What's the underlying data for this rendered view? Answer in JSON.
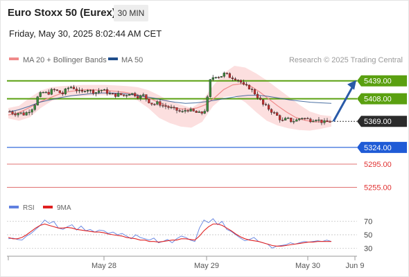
{
  "header": {
    "title": "Euro Stoxx 50 (Eurex)",
    "timeframe": "30 MIN",
    "datetime": "Friday, May 30, 2025 8:02:44 AM CET"
  },
  "legend": {
    "ma20": "MA 20 + Bollinger Bands",
    "ma50": "MA 50",
    "copyright": "Research © 2025 Trading Central",
    "rsi": "RSI",
    "ma9": "9MA"
  },
  "colors": {
    "ma20": "#f08a8a",
    "ma50": "#1f4e8c",
    "bollinger": "#fcd9d9",
    "resistance": "#5aa010",
    "support": "#1f5bd6",
    "support_minor": "#e07070",
    "arrow": "#2a5aa8",
    "rsi": "#6080e0",
    "rsi_ma": "#e02020"
  },
  "chart_data": [
    {
      "type": "candlestick",
      "ylim": [
        5240,
        5465
      ],
      "xlabels": [
        "May 28",
        "May 29",
        "May 30",
        "Jun 9"
      ],
      "levels": [
        {
          "value": 5439.0,
          "label": "5439.00",
          "kind": "resistance"
        },
        {
          "value": 5408.0,
          "label": "5408.00",
          "kind": "resistance"
        },
        {
          "value": 5369.0,
          "label": "5369.00",
          "kind": "last"
        },
        {
          "value": 5324.0,
          "label": "5324.00",
          "kind": "support"
        },
        {
          "value": 5295.0,
          "label": "5295.00",
          "kind": "support_minor"
        },
        {
          "value": 5255.0,
          "label": "5255.00",
          "kind": "support_minor"
        }
      ],
      "price_path": [
        5386,
        5382,
        5384,
        5381,
        5387,
        5394,
        5414,
        5419,
        5417,
        5424,
        5421,
        5416,
        5426,
        5429,
        5423,
        5418,
        5426,
        5421,
        5419,
        5424,
        5421,
        5416,
        5414,
        5416,
        5413,
        5418,
        5416,
        5411,
        5414,
        5404,
        5398,
        5401,
        5396,
        5394,
        5391,
        5388,
        5384,
        5390,
        5387,
        5384,
        5382,
        5390,
        5442,
        5448,
        5446,
        5452,
        5446,
        5444,
        5440,
        5430,
        5428,
        5420,
        5410,
        5398,
        5392,
        5385,
        5378,
        5369,
        5374,
        5369,
        5371,
        5376,
        5373,
        5371,
        5374,
        5369,
        5367,
        5369
      ],
      "ma20_path": [
        5380,
        5383,
        5390,
        5398,
        5406,
        5412,
        5418,
        5421,
        5423,
        5424,
        5423,
        5422,
        5421,
        5419,
        5416,
        5412,
        5407,
        5400,
        5394,
        5391,
        5390,
        5392,
        5398,
        5410,
        5424,
        5432,
        5434,
        5430,
        5420,
        5408,
        5396,
        5385,
        5376,
        5371,
        5368,
        5368,
        5369
      ],
      "ma50_path": [
        5385,
        5389,
        5395,
        5402,
        5406,
        5410,
        5413,
        5415,
        5417,
        5418,
        5418,
        5417,
        5415,
        5412,
        5409,
        5405,
        5402,
        5400,
        5401,
        5403,
        5406,
        5409,
        5412,
        5414,
        5414,
        5412,
        5409,
        5406,
        5404,
        5402,
        5401,
        5400
      ],
      "bb_upper": [
        5392,
        5396,
        5410,
        5422,
        5428,
        5430,
        5431,
        5432,
        5432,
        5432,
        5431,
        5430,
        5428,
        5423,
        5414,
        5404,
        5398,
        5392,
        5404,
        5430,
        5452,
        5465,
        5462,
        5452,
        5440,
        5426,
        5412,
        5398,
        5386,
        5380,
        5378
      ],
      "bb_lower": [
        5374,
        5370,
        5376,
        5392,
        5404,
        5410,
        5412,
        5412,
        5414,
        5414,
        5413,
        5411,
        5405,
        5392,
        5375,
        5366,
        5360,
        5358,
        5368,
        5395,
        5411,
        5413,
        5402,
        5385,
        5370,
        5362,
        5357,
        5354,
        5353,
        5356,
        5360
      ]
    },
    {
      "type": "line",
      "title": "RSI",
      "ylim": [
        20,
        80
      ],
      "yticks": [
        70,
        50,
        30
      ],
      "series": [
        {
          "name": "RSI",
          "values": [
            44,
            45,
            43,
            42,
            48,
            52,
            58,
            64,
            72,
            67,
            70,
            60,
            58,
            62,
            65,
            57,
            63,
            56,
            58,
            54,
            57,
            56,
            52,
            54,
            50,
            52,
            48,
            44,
            50,
            46,
            44,
            42,
            45,
            38,
            40,
            43,
            38,
            44,
            48,
            46,
            42,
            40,
            60,
            72,
            68,
            74,
            65,
            70,
            58,
            55,
            50,
            45,
            41,
            43,
            46,
            40,
            38,
            36,
            30,
            33,
            34,
            35,
            38,
            36,
            38,
            40,
            39,
            40,
            41,
            40,
            42,
            40
          ]
        },
        {
          "name": "9MA",
          "values": [
            46,
            44,
            44,
            46,
            50,
            55,
            60,
            64,
            66,
            64,
            62,
            60,
            60,
            61,
            60,
            58,
            57,
            56,
            55,
            54,
            54,
            53,
            51,
            50,
            49,
            48,
            46,
            45,
            44,
            42,
            42,
            40,
            40,
            39,
            40,
            41,
            42,
            42,
            44,
            44,
            43,
            42,
            48,
            56,
            62,
            66,
            66,
            64,
            60,
            56,
            51,
            47,
            44,
            42,
            41,
            40,
            38,
            36,
            34,
            33,
            33,
            34,
            35,
            36,
            37,
            38,
            39,
            39,
            40,
            40,
            40,
            40
          ]
        }
      ]
    }
  ]
}
